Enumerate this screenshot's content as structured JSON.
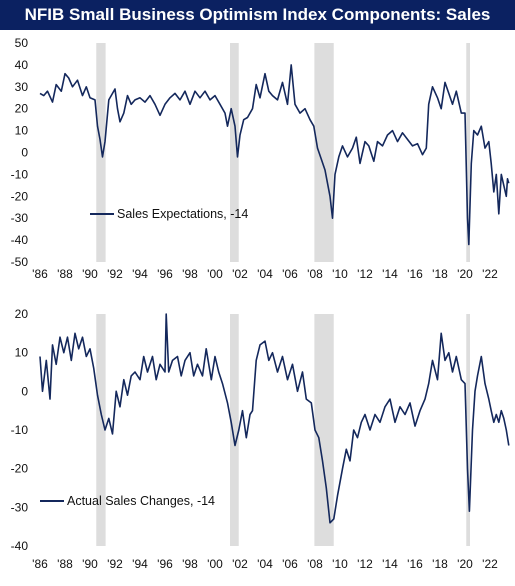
{
  "title": "NFIB Small Business Optimism Index Components: Sales",
  "colors": {
    "title_bg": "#0b2161",
    "title_text": "#ffffff",
    "line": "#14285c",
    "recession": "#dddddd"
  },
  "chart_data": [
    {
      "type": "line",
      "title": "",
      "xlabel": "",
      "ylabel": "",
      "xlim": [
        1986,
        2023.6
      ],
      "ylim": [
        -50,
        50
      ],
      "yticks": [
        50,
        40,
        30,
        20,
        10,
        0,
        -10,
        -20,
        -30,
        -40,
        -50
      ],
      "xticks": [
        "'86",
        "'88",
        "'90",
        "'92",
        "'94",
        "'96",
        "'98",
        "'00",
        "'02",
        "'04",
        "'06",
        "'08",
        "'10",
        "'12",
        "'14",
        "'16",
        "'18",
        "'20",
        "'22"
      ],
      "legend_position": "lower-left",
      "grid": false,
      "recessions": [
        [
          1990.5,
          1991.25
        ],
        [
          2001.2,
          2001.9
        ],
        [
          2007.95,
          2009.5
        ],
        [
          2020.1,
          2020.4
        ]
      ],
      "series": [
        {
          "name": "Sales Expectations, -14",
          "points": [
            [
              1986.0,
              27
            ],
            [
              1986.3,
              26
            ],
            [
              1986.6,
              28
            ],
            [
              1987.0,
              23
            ],
            [
              1987.3,
              31
            ],
            [
              1987.7,
              28
            ],
            [
              1988.0,
              36
            ],
            [
              1988.3,
              34
            ],
            [
              1988.6,
              30
            ],
            [
              1989.0,
              33
            ],
            [
              1989.4,
              26
            ],
            [
              1989.7,
              30
            ],
            [
              1990.0,
              25
            ],
            [
              1990.4,
              24
            ],
            [
              1990.6,
              12
            ],
            [
              1990.8,
              6
            ],
            [
              1991.0,
              -2
            ],
            [
              1991.2,
              5
            ],
            [
              1991.5,
              24
            ],
            [
              1991.8,
              27
            ],
            [
              1992.0,
              29
            ],
            [
              1992.2,
              20
            ],
            [
              1992.4,
              14
            ],
            [
              1992.7,
              18
            ],
            [
              1993.0,
              26
            ],
            [
              1993.3,
              22
            ],
            [
              1993.6,
              24
            ],
            [
              1994.0,
              25
            ],
            [
              1994.4,
              23
            ],
            [
              1994.8,
              26
            ],
            [
              1995.2,
              22
            ],
            [
              1995.6,
              17
            ],
            [
              1996.0,
              22
            ],
            [
              1996.4,
              25
            ],
            [
              1996.8,
              27
            ],
            [
              1997.2,
              24
            ],
            [
              1997.6,
              28
            ],
            [
              1998.0,
              22
            ],
            [
              1998.4,
              28
            ],
            [
              1998.8,
              25
            ],
            [
              1999.2,
              28
            ],
            [
              1999.6,
              24
            ],
            [
              2000.0,
              26
            ],
            [
              2000.4,
              22
            ],
            [
              2000.8,
              18
            ],
            [
              2001.0,
              12
            ],
            [
              2001.3,
              20
            ],
            [
              2001.6,
              12
            ],
            [
              2001.8,
              -2
            ],
            [
              2002.0,
              8
            ],
            [
              2002.3,
              15
            ],
            [
              2002.6,
              16
            ],
            [
              2003.0,
              20
            ],
            [
              2003.3,
              31
            ],
            [
              2003.6,
              25
            ],
            [
              2004.0,
              36
            ],
            [
              2004.3,
              28
            ],
            [
              2004.6,
              26
            ],
            [
              2005.0,
              24
            ],
            [
              2005.4,
              32
            ],
            [
              2005.8,
              22
            ],
            [
              2006.1,
              40
            ],
            [
              2006.4,
              22
            ],
            [
              2006.8,
              18
            ],
            [
              2007.2,
              20
            ],
            [
              2007.6,
              15
            ],
            [
              2007.9,
              12
            ],
            [
              2008.2,
              2
            ],
            [
              2008.5,
              -3
            ],
            [
              2008.8,
              -8
            ],
            [
              2009.0,
              -14
            ],
            [
              2009.2,
              -20
            ],
            [
              2009.4,
              -30
            ],
            [
              2009.6,
              -10
            ],
            [
              2009.9,
              -2
            ],
            [
              2010.2,
              3
            ],
            [
              2010.6,
              -2
            ],
            [
              2011.0,
              2
            ],
            [
              2011.3,
              7
            ],
            [
              2011.6,
              -5
            ],
            [
              2012.0,
              5
            ],
            [
              2012.3,
              3
            ],
            [
              2012.7,
              -4
            ],
            [
              2013.0,
              5
            ],
            [
              2013.4,
              3
            ],
            [
              2013.8,
              8
            ],
            [
              2014.2,
              10
            ],
            [
              2014.6,
              5
            ],
            [
              2015.0,
              9
            ],
            [
              2015.4,
              6
            ],
            [
              2015.8,
              3
            ],
            [
              2016.2,
              4
            ],
            [
              2016.6,
              -1
            ],
            [
              2016.9,
              2
            ],
            [
              2017.1,
              22
            ],
            [
              2017.4,
              30
            ],
            [
              2017.8,
              25
            ],
            [
              2018.1,
              20
            ],
            [
              2018.4,
              32
            ],
            [
              2018.7,
              27
            ],
            [
              2019.0,
              22
            ],
            [
              2019.3,
              28
            ],
            [
              2019.7,
              18
            ],
            [
              2020.0,
              18
            ],
            [
              2020.2,
              -30
            ],
            [
              2020.3,
              -42
            ],
            [
              2020.5,
              -5
            ],
            [
              2020.7,
              10
            ],
            [
              2021.0,
              8
            ],
            [
              2021.3,
              12
            ],
            [
              2021.6,
              2
            ],
            [
              2021.9,
              5
            ],
            [
              2022.1,
              -5
            ],
            [
              2022.3,
              -18
            ],
            [
              2022.5,
              -10
            ],
            [
              2022.7,
              -28
            ],
            [
              2022.9,
              -10
            ],
            [
              2023.1,
              -15
            ],
            [
              2023.3,
              -20
            ],
            [
              2023.4,
              -12
            ],
            [
              2023.5,
              -14
            ]
          ]
        }
      ]
    },
    {
      "type": "line",
      "title": "",
      "xlabel": "",
      "ylabel": "",
      "xlim": [
        1986,
        2023.6
      ],
      "ylim": [
        -40,
        20
      ],
      "yticks": [
        20,
        10,
        0,
        -10,
        -20,
        -30,
        -40
      ],
      "xticks": [
        "'86",
        "'88",
        "'90",
        "'92",
        "'94",
        "'96",
        "'98",
        "'00",
        "'02",
        "'04",
        "'06",
        "'08",
        "'10",
        "'12",
        "'14",
        "'16",
        "'18",
        "'20",
        "'22"
      ],
      "legend_position": "lower-left",
      "grid": false,
      "recessions": [
        [
          1990.5,
          1991.25
        ],
        [
          2001.2,
          2001.9
        ],
        [
          2007.95,
          2009.5
        ],
        [
          2020.1,
          2020.4
        ]
      ],
      "series": [
        {
          "name": "Actual Sales Changes, -14",
          "points": [
            [
              1986.0,
              9
            ],
            [
              1986.2,
              0
            ],
            [
              1986.5,
              8
            ],
            [
              1986.8,
              -2
            ],
            [
              1987.0,
              12
            ],
            [
              1987.3,
              7
            ],
            [
              1987.6,
              14
            ],
            [
              1987.9,
              10
            ],
            [
              1988.2,
              14
            ],
            [
              1988.5,
              8
            ],
            [
              1988.8,
              15
            ],
            [
              1989.1,
              11
            ],
            [
              1989.4,
              14
            ],
            [
              1989.7,
              9
            ],
            [
              1990.0,
              11
            ],
            [
              1990.3,
              6
            ],
            [
              1990.6,
              -1
            ],
            [
              1990.9,
              -6
            ],
            [
              1991.2,
              -10
            ],
            [
              1991.5,
              -7
            ],
            [
              1991.8,
              -11
            ],
            [
              1992.1,
              0
            ],
            [
              1992.4,
              -4
            ],
            [
              1992.7,
              3
            ],
            [
              1993.0,
              -1
            ],
            [
              1993.3,
              4
            ],
            [
              1993.6,
              5
            ],
            [
              1994.0,
              3
            ],
            [
              1994.3,
              9
            ],
            [
              1994.6,
              5
            ],
            [
              1995.0,
              9
            ],
            [
              1995.3,
              3
            ],
            [
              1995.6,
              7
            ],
            [
              1996.0,
              5
            ],
            [
              1996.1,
              20
            ],
            [
              1996.3,
              5
            ],
            [
              1996.6,
              8
            ],
            [
              1997.0,
              9
            ],
            [
              1997.3,
              4
            ],
            [
              1997.6,
              8
            ],
            [
              1998.0,
              10
            ],
            [
              1998.3,
              4
            ],
            [
              1998.6,
              7
            ],
            [
              1999.0,
              4
            ],
            [
              1999.3,
              11
            ],
            [
              1999.7,
              3
            ],
            [
              2000.0,
              9
            ],
            [
              2000.3,
              5
            ],
            [
              2000.6,
              2
            ],
            [
              2001.0,
              -3
            ],
            [
              2001.3,
              -8
            ],
            [
              2001.6,
              -14
            ],
            [
              2001.9,
              -10
            ],
            [
              2002.2,
              -5
            ],
            [
              2002.5,
              -12
            ],
            [
              2002.8,
              -6
            ],
            [
              2003.0,
              -5
            ],
            [
              2003.3,
              8
            ],
            [
              2003.6,
              12
            ],
            [
              2004.0,
              13
            ],
            [
              2004.3,
              8
            ],
            [
              2004.6,
              10
            ],
            [
              2005.0,
              5
            ],
            [
              2005.4,
              9
            ],
            [
              2005.8,
              3
            ],
            [
              2006.2,
              7
            ],
            [
              2006.6,
              0
            ],
            [
              2007.0,
              5
            ],
            [
              2007.3,
              -2
            ],
            [
              2007.7,
              -3
            ],
            [
              2008.0,
              -10
            ],
            [
              2008.3,
              -12
            ],
            [
              2008.6,
              -18
            ],
            [
              2008.9,
              -25
            ],
            [
              2009.2,
              -34
            ],
            [
              2009.5,
              -33
            ],
            [
              2009.8,
              -27
            ],
            [
              2010.2,
              -20
            ],
            [
              2010.5,
              -15
            ],
            [
              2010.8,
              -18
            ],
            [
              2011.1,
              -10
            ],
            [
              2011.4,
              -12
            ],
            [
              2011.7,
              -8
            ],
            [
              2012.0,
              -6
            ],
            [
              2012.4,
              -10
            ],
            [
              2012.8,
              -6
            ],
            [
              2013.2,
              -8
            ],
            [
              2013.6,
              -4
            ],
            [
              2014.0,
              -2
            ],
            [
              2014.4,
              -8
            ],
            [
              2014.8,
              -4
            ],
            [
              2015.2,
              -6
            ],
            [
              2015.6,
              -3
            ],
            [
              2016.0,
              -9
            ],
            [
              2016.4,
              -5
            ],
            [
              2016.8,
              -2
            ],
            [
              2017.1,
              2
            ],
            [
              2017.4,
              8
            ],
            [
              2017.8,
              3
            ],
            [
              2018.1,
              15
            ],
            [
              2018.4,
              8
            ],
            [
              2018.7,
              10
            ],
            [
              2019.0,
              5
            ],
            [
              2019.3,
              9
            ],
            [
              2019.7,
              3
            ],
            [
              2020.0,
              2
            ],
            [
              2020.2,
              -20
            ],
            [
              2020.35,
              -31
            ],
            [
              2020.6,
              -10
            ],
            [
              2020.8,
              0
            ],
            [
              2021.0,
              4
            ],
            [
              2021.3,
              9
            ],
            [
              2021.6,
              2
            ],
            [
              2021.9,
              -2
            ],
            [
              2022.1,
              -5
            ],
            [
              2022.3,
              -8
            ],
            [
              2022.5,
              -6
            ],
            [
              2022.7,
              -8
            ],
            [
              2022.9,
              -5
            ],
            [
              2023.1,
              -7
            ],
            [
              2023.3,
              -10
            ],
            [
              2023.5,
              -14
            ]
          ]
        }
      ]
    }
  ]
}
